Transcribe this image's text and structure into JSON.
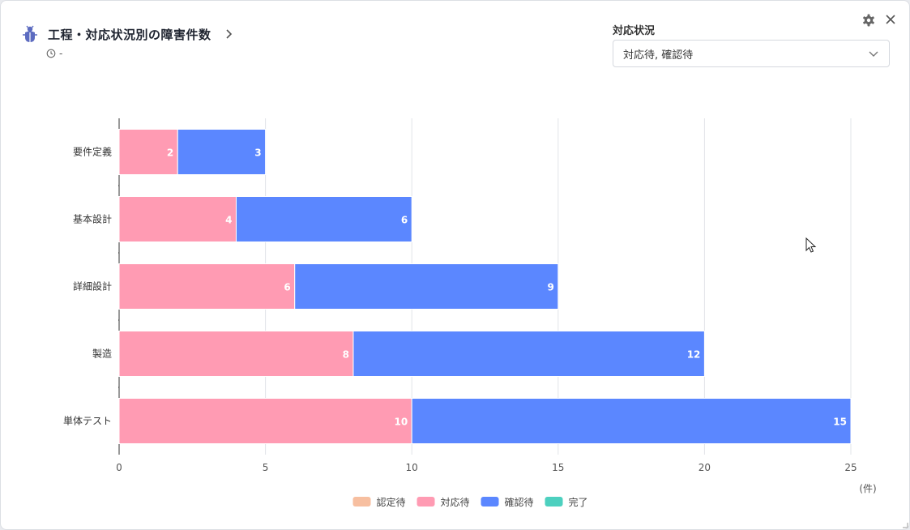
{
  "header": {
    "title": "工程・対応状況別の障害件数",
    "subtitle": "-"
  },
  "filter": {
    "label": "対応状況",
    "value": "対応待, 確認待"
  },
  "icons": {
    "bug": "bug-icon",
    "chevron": "chevron-right-icon",
    "clock": "clock-icon",
    "gear": "gear-icon",
    "close": "close-icon",
    "caret": "chevron-down-icon"
  },
  "chart_data": {
    "type": "bar",
    "orientation": "horizontal",
    "stacked": true,
    "categories": [
      "要件定義",
      "基本設計",
      "詳細設計",
      "製造",
      "単体テスト"
    ],
    "series": [
      {
        "name": "認定待",
        "color": "#f7bfa0",
        "values": [
          0,
          0,
          0,
          0,
          0
        ]
      },
      {
        "name": "対応待",
        "color": "#ff9bb3",
        "values": [
          2,
          4,
          6,
          8,
          10
        ]
      },
      {
        "name": "確認待",
        "color": "#5b87ff",
        "values": [
          3,
          6,
          9,
          12,
          15
        ]
      },
      {
        "name": "完了",
        "color": "#4dd0bf",
        "values": [
          0,
          0,
          0,
          0,
          0
        ]
      }
    ],
    "xlim": [
      0,
      25
    ],
    "xticks": [
      0,
      5,
      10,
      15,
      20,
      25
    ],
    "xlabel": "(件)",
    "grid": true,
    "legend": "bottom-center"
  }
}
